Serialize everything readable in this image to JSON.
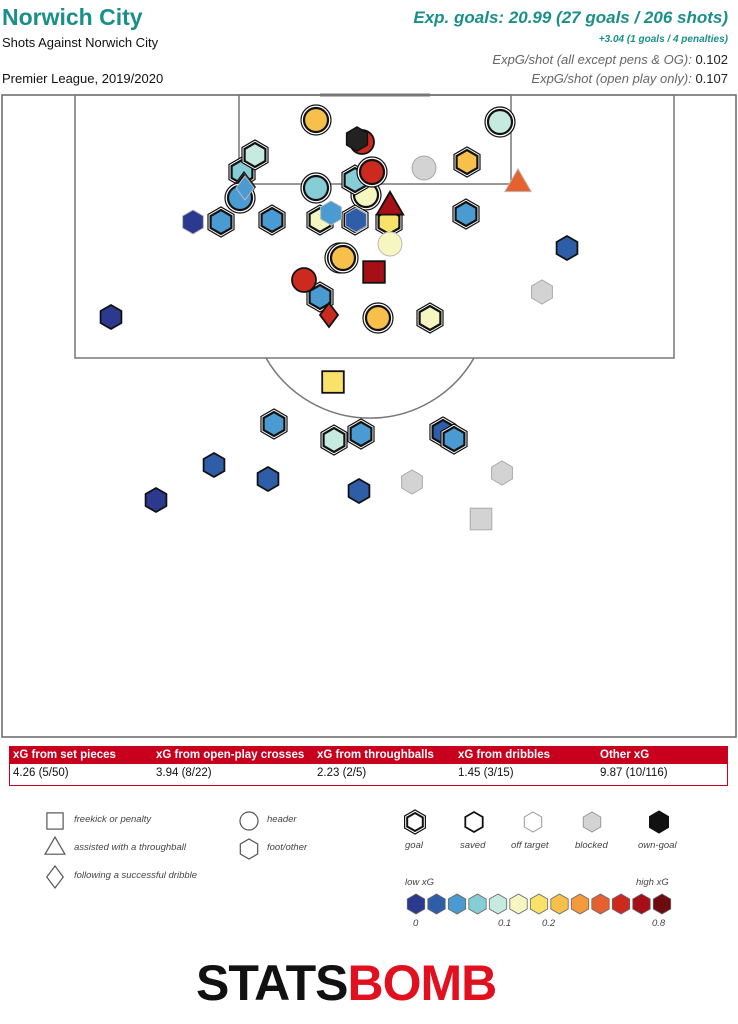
{
  "header": {
    "team": "Norwich City",
    "subtitle": "Shots Against Norwich City",
    "season": "Premier League, 2019/2020",
    "exp_goals": "Exp. goals: 20.99 (27 goals / 206 shots)",
    "penalties": "+3.04 (1 goals / 4 penalties)",
    "expg_shot_label_1": "ExpG/shot (all except pens & OG):",
    "expg_shot_value_1": "0.102",
    "expg_shot_label_2": "ExpG/shot (open play only):",
    "expg_shot_value_2": "0.107"
  },
  "breakdown": {
    "headers": [
      "xG from set pieces",
      "xG from open-play crosses",
      "xG from throughballs",
      "xG from dribbles",
      "Other xG"
    ],
    "values": [
      "4.26 (5/50)",
      "3.94 (8/22)",
      "2.23 (2/5)",
      "1.45 (3/15)",
      "9.87 (10/116)"
    ]
  },
  "legend": {
    "shapes": [
      "freekick or penalty",
      "assisted with a throughball",
      "following a successful dribble",
      "header",
      "foot/other"
    ],
    "outcomes": [
      "goal",
      "saved",
      "off target",
      "blocked",
      "own-goal"
    ],
    "scale_low": "low xG",
    "scale_high": "high xG",
    "scale_ticks": [
      "0",
      "0.1",
      "0.2",
      "0.8"
    ]
  },
  "logo": {
    "part1": "STATS",
    "part2": "BOMB"
  },
  "colors": {
    "title": "#1a8f8a",
    "table_header": "#c8001e",
    "xg_scale": [
      "#2b3a8f",
      "#2e5ea8",
      "#4a9bd2",
      "#86cdd6",
      "#c6e9e0",
      "#f6f6c0",
      "#f9e26a",
      "#f7c04a",
      "#f29a3c",
      "#e5612d",
      "#cc2a1f",
      "#a50f15",
      "#6e0b10"
    ],
    "blocked": "#d3d3d3",
    "own_goal": "#222222"
  },
  "chart_data": {
    "type": "scatter",
    "title": "Shots Against Norwich City",
    "xlabel": "",
    "ylabel": "",
    "series": [
      {
        "name": "goal",
        "points": [
          {
            "shape": "hex",
            "xg": 0.07
          },
          {
            "shape": "hex",
            "xg": 0.08
          },
          {
            "shape": "circle",
            "xg": 0.2
          },
          {
            "shape": "circle",
            "xg": 0.04
          },
          {
            "shape": "circle",
            "xg": 0.2
          },
          {
            "shape": "hex",
            "xg": 0.05
          },
          {
            "shape": "circle",
            "xg": 0.12
          },
          {
            "shape": "hex",
            "xg": 0.04
          },
          {
            "shape": "hex",
            "xg": 0.04
          },
          {
            "shape": "hex",
            "xg": 0.22
          },
          {
            "shape": "diamond",
            "xg": 0.05
          },
          {
            "shape": "hex",
            "xg": 0.15
          },
          {
            "shape": "circle",
            "xg": 0.06
          },
          {
            "shape": "hex",
            "xg": 0.04
          },
          {
            "shape": "hex",
            "xg": 0.14
          },
          {
            "shape": "hex",
            "xg": 0.04
          },
          {
            "shape": "hex",
            "xg": 0.04
          },
          {
            "shape": "hex",
            "xg": 0.03
          },
          {
            "shape": "circle",
            "xg": 0.09
          },
          {
            "shape": "hex",
            "xg": 0.04
          },
          {
            "shape": "hex",
            "xg": 0.15
          },
          {
            "shape": "circle",
            "xg": 0.2
          },
          {
            "shape": "hex",
            "xg": 0.08
          },
          {
            "shape": "circle",
            "xg": 0.04
          },
          {
            "shape": "hex",
            "xg": 0.1
          },
          {
            "shape": "hex",
            "xg": 0.06
          },
          {
            "shape": "circle",
            "xg": 0.5
          }
        ]
      },
      {
        "name": "saved",
        "points": [
          {
            "shape": "hex",
            "xg": 0.01
          },
          {
            "shape": "hex",
            "xg": 0.01
          },
          {
            "shape": "hex",
            "xg": 0.03
          },
          {
            "shape": "hex",
            "xg": 0.02
          },
          {
            "shape": "hex",
            "xg": 0.02
          },
          {
            "shape": "square",
            "xg": 0.75
          },
          {
            "shape": "triangle",
            "xg": 0.7
          },
          {
            "shape": "circle",
            "xg": 0.55
          },
          {
            "shape": "square",
            "xg": 0.18
          },
          {
            "shape": "diamond",
            "xg": 0.6
          },
          {
            "shape": "hex",
            "xg": 0.03
          },
          {
            "shape": "circle",
            "xg": 0.6
          }
        ]
      },
      {
        "name": "off target",
        "points": [
          {
            "shape": "hex",
            "xg": 0.0
          },
          {
            "shape": "hex",
            "xg": 0.02
          },
          {
            "shape": "circle",
            "xg": 0.1
          },
          {
            "shape": "hex",
            "xg": 0.05
          },
          {
            "shape": "triangle",
            "xg": 0.4
          },
          {
            "shape": "diamond",
            "xg": 0.04
          }
        ]
      },
      {
        "name": "blocked",
        "points": [
          {
            "shape": "hex",
            "xg": 0.0
          },
          {
            "shape": "hex",
            "xg": 0.0
          },
          {
            "shape": "hex",
            "xg": 0.0
          },
          {
            "shape": "circle",
            "xg": 0.0
          },
          {
            "shape": "square",
            "xg": 0.0
          }
        ]
      },
      {
        "name": "own-goal",
        "points": [
          {
            "shape": "hex",
            "xg": 0.0
          }
        ]
      }
    ]
  }
}
